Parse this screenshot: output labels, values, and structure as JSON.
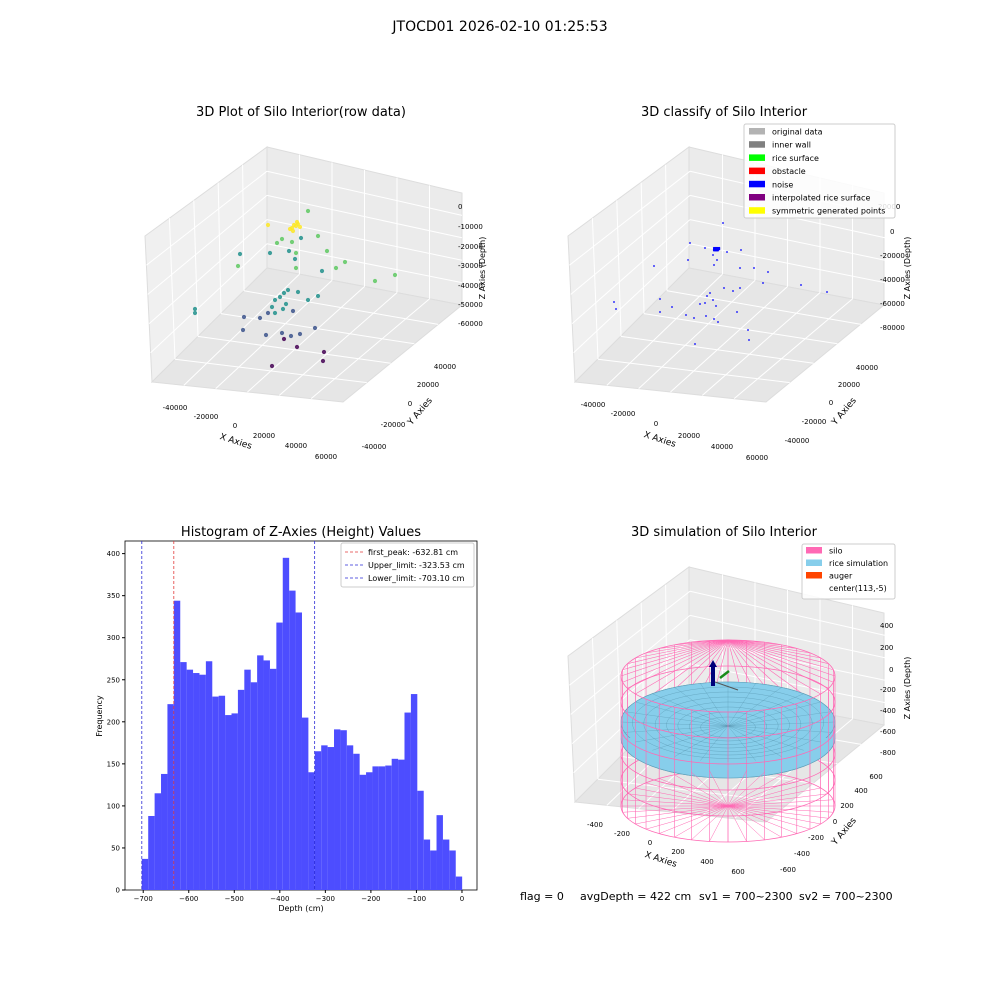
{
  "suptitle": "JTOCD01 2026-02-10 01:25:53",
  "colors": {
    "hist_bar": "#4d4dff",
    "first_peak_line": "#e23b3b",
    "limit_line": "#2b2bd6",
    "viridis": [
      "#440154",
      "#3b528b",
      "#21918c",
      "#5ec962",
      "#fde725"
    ],
    "pane": "#f2f2f2",
    "grid": "#d9d9d9"
  },
  "chart_data": [
    {
      "type": "scatter",
      "title": "3D Plot of Silo Interior(row data)",
      "xlabel": "X Axies",
      "ylabel": "Y Axies",
      "zlabel": "Z Axies (Depth)",
      "x_ticks": [
        "-40000",
        "-20000",
        "0",
        "20000",
        "40000",
        "60000"
      ],
      "y_ticks": [
        "-40000",
        "-20000",
        "0",
        "20000",
        "40000"
      ],
      "z_ticks": [
        "0",
        "-10000",
        "-20000",
        "-30000",
        "-40000",
        "-50000",
        "-60000"
      ],
      "colormap": "viridis (by depth)"
    },
    {
      "type": "scatter",
      "title": "3D classify of Silo Interior",
      "zlabel": "Z Axies (Depth)",
      "xlabel": "X Axies",
      "ylabel": "Y Axies",
      "x_ticks": [
        "-40000",
        "-20000",
        "0",
        "20000",
        "40000",
        "60000"
      ],
      "y_ticks": [
        "-40000",
        "-20000",
        "0",
        "20000",
        "40000"
      ],
      "z_ticks": [
        "20000",
        "0",
        "-20000",
        "-40000",
        "-60000",
        "-80000"
      ],
      "legend_position": "top-right",
      "legend": [
        {
          "label": "original data",
          "color": "#b3b3b3"
        },
        {
          "label": "inner wall",
          "color": "#808080"
        },
        {
          "label": "rice surface",
          "color": "#00ff00"
        },
        {
          "label": "obstacle",
          "color": "#ff0000"
        },
        {
          "label": "noise",
          "color": "#0000ff"
        },
        {
          "label": "interpolated rice surface",
          "color": "#800080"
        },
        {
          "label": "symmetric generated points",
          "color": "#ffff00"
        }
      ]
    },
    {
      "type": "bar",
      "title": "Histogram of Z-Axies (Height) Values",
      "xlabel": "Depth (cm)",
      "ylabel": "Frequency",
      "xlim": [
        -740,
        33
      ],
      "ylim": [
        0,
        415
      ],
      "x_ticks": [
        "−700",
        "−600",
        "−500",
        "−400",
        "−300",
        "−200",
        "−100",
        "0"
      ],
      "x_tick_values": [
        -700,
        -600,
        -500,
        -400,
        -300,
        -200,
        -100,
        0
      ],
      "y_ticks": [
        0,
        50,
        100,
        150,
        200,
        250,
        300,
        350,
        400
      ],
      "bin_start": -703.1,
      "bin_width": 14.07,
      "values": [
        37,
        88,
        115,
        138,
        221,
        344,
        271,
        262,
        258,
        256,
        272,
        230,
        231,
        208,
        210,
        238,
        262,
        247,
        279,
        273,
        263,
        318,
        395,
        356,
        330,
        205,
        140,
        165,
        172,
        170,
        191,
        190,
        172,
        162,
        137,
        140,
        147,
        147,
        148,
        156,
        155,
        211,
        233,
        118,
        60,
        47,
        89,
        60,
        47,
        16
      ],
      "vlines": [
        {
          "label": "first_peak: -632.81 cm",
          "x": -632.81,
          "color": "#e23b3b"
        },
        {
          "label": "Upper_limit: -323.53 cm",
          "x": -323.53,
          "color": "#2b2bd6"
        },
        {
          "label": "Lower_limit: -703.10 cm",
          "x": -703.1,
          "color": "#2b2bd6"
        }
      ],
      "legend_position": "top-right"
    },
    {
      "type": "other",
      "title": "3D simulation of Silo Interior",
      "xlabel": "X Axies",
      "ylabel": "Y Axies",
      "zlabel": "Z Axies (Depth)",
      "x_ticks": [
        "-400",
        "-200",
        "0",
        "200",
        "400",
        "600"
      ],
      "y_ticks": [
        "-600",
        "-400",
        "-200",
        "0",
        "200",
        "400",
        "600"
      ],
      "z_ticks": [
        "400",
        "200",
        "0",
        "-200",
        "-400",
        "-600",
        "-800"
      ],
      "legend_position": "top-right",
      "legend": [
        {
          "label": "silo",
          "color": "#ff69b4"
        },
        {
          "label": "rice simulation",
          "color": "#87ceeb"
        },
        {
          "label": "auger",
          "color": "#ff4500"
        },
        {
          "label": "center(113,-5)",
          "color": ""
        }
      ],
      "silo_color": "#ff69b4",
      "rice_color": "#87ceeb"
    }
  ],
  "footer": {
    "flag": "flag = 0",
    "avg_depth": "avgDepth = 422 cm",
    "sv1": "sv1 = 700~2300",
    "sv2": "sv2 = 700~2300"
  }
}
